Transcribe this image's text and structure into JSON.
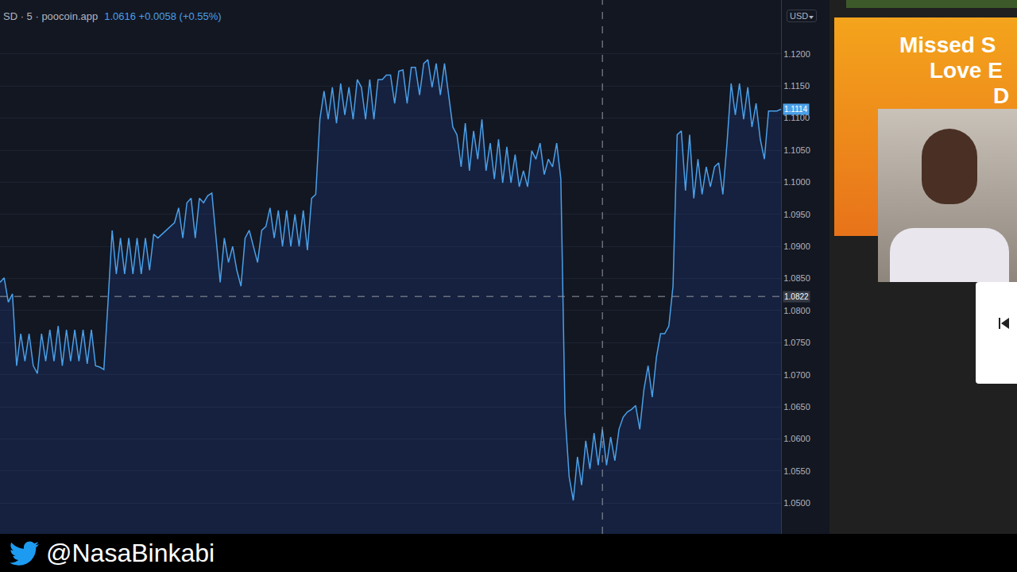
{
  "chart_data": {
    "type": "line",
    "color": "#4a9fe8",
    "grid": true,
    "tick_labels": "y",
    "currency": "USD",
    "last_price": 1.1114,
    "crosshair": {
      "x": 145,
      "y": 1.0822
    },
    "xlim": [
      0,
      188
    ],
    "ylim": [
      1.0452,
      1.1284
    ],
    "yticks": [
      {
        "value": 1.05,
        "label": "1.0500"
      },
      {
        "value": 1.055,
        "label": "1.0550"
      },
      {
        "value": 1.06,
        "label": "1.0600"
      },
      {
        "value": 1.065,
        "label": "1.0650"
      },
      {
        "value": 1.07,
        "label": "1.0700"
      },
      {
        "value": 1.075,
        "label": "1.0750"
      },
      {
        "value": 1.08,
        "label": "1.0800"
      },
      {
        "value": 1.085,
        "label": "1.0850"
      },
      {
        "value": 1.09,
        "label": "1.0900"
      },
      {
        "value": 1.095,
        "label": "1.0950"
      },
      {
        "value": 1.1,
        "label": "1.1000"
      },
      {
        "value": 1.105,
        "label": "1.1050"
      },
      {
        "value": 1.11,
        "label": "1.1100"
      },
      {
        "value": 1.115,
        "label": "1.1150"
      },
      {
        "value": 1.12,
        "label": "1.1200"
      }
    ],
    "x": [
      0,
      1,
      2,
      3,
      4,
      5,
      6,
      7,
      8,
      9,
      10,
      11,
      12,
      13,
      14,
      15,
      16,
      17,
      18,
      19,
      20,
      21,
      22,
      23,
      24,
      25,
      26,
      27,
      28,
      29,
      30,
      31,
      32,
      33,
      34,
      35,
      36,
      37,
      38,
      39,
      40,
      41,
      42,
      43,
      44,
      45,
      46,
      47,
      48,
      49,
      50,
      51,
      52,
      53,
      54,
      55,
      56,
      57,
      58,
      59,
      60,
      61,
      62,
      63,
      64,
      65,
      66,
      67,
      68,
      69,
      70,
      71,
      72,
      73,
      74,
      75,
      76,
      77,
      78,
      79,
      80,
      81,
      82,
      83,
      84,
      85,
      86,
      87,
      88,
      89,
      90,
      91,
      92,
      93,
      94,
      95,
      96,
      97,
      98,
      99,
      100,
      101,
      102,
      103,
      104,
      105,
      106,
      107,
      108,
      109,
      110,
      111,
      112,
      113,
      114,
      115,
      116,
      117,
      118,
      119,
      120,
      121,
      122,
      123,
      124,
      125,
      126,
      127,
      128,
      129,
      130,
      131,
      132,
      133,
      134,
      135,
      136,
      137,
      138,
      139,
      140,
      141,
      142,
      143,
      144,
      145,
      146,
      147,
      148,
      149,
      150,
      151,
      152,
      153,
      154,
      155,
      156,
      157,
      158,
      159,
      160,
      161,
      162,
      163,
      164,
      165,
      166,
      167,
      168,
      169,
      170,
      171,
      172,
      173,
      174,
      175,
      176,
      177,
      178,
      179,
      180,
      181,
      182,
      183,
      184,
      185,
      186,
      187,
      188
    ],
    "values": [
      1.0844,
      1.0851,
      1.0813,
      1.0826,
      1.0714,
      1.0764,
      1.0721,
      1.0764,
      1.0714,
      1.0702,
      1.0764,
      1.0721,
      1.077,
      1.0721,
      1.0776,
      1.0714,
      1.077,
      1.0721,
      1.077,
      1.0721,
      1.077,
      1.0717,
      1.077,
      1.0714,
      1.0712,
      1.0708,
      1.0813,
      1.0925,
      1.0857,
      1.0913,
      1.0857,
      1.0913,
      1.0857,
      1.0913,
      1.0857,
      1.0913,
      1.0863,
      1.0919,
      1.0913,
      1.0919,
      1.0925,
      1.0931,
      1.0937,
      1.096,
      1.0913,
      1.0968,
      1.0975,
      1.0913,
      1.0975,
      1.0968,
      1.0979,
      1.0983,
      1.0913,
      1.0844,
      1.0913,
      1.0875,
      1.09,
      1.0863,
      1.0838,
      1.0913,
      1.0925,
      1.09,
      1.0875,
      1.0925,
      1.0931,
      1.096,
      1.0913,
      1.0956,
      1.09,
      1.0956,
      1.09,
      1.095,
      1.09,
      1.0956,
      1.0894,
      1.0975,
      1.0981,
      1.1098,
      1.1142,
      1.1098,
      1.1148,
      1.1092,
      1.1154,
      1.1105,
      1.1148,
      1.1098,
      1.116,
      1.1148,
      1.1098,
      1.116,
      1.1098,
      1.116,
      1.116,
      1.1167,
      1.1167,
      1.1123,
      1.1173,
      1.1175,
      1.1123,
      1.1179,
      1.1179,
      1.1136,
      1.1185,
      1.1191,
      1.1148,
      1.1185,
      1.1136,
      1.1185,
      1.1136,
      1.1086,
      1.1074,
      1.1024,
      1.1092,
      1.1018,
      1.108,
      1.1036,
      1.1098,
      1.1018,
      1.1061,
      1.1005,
      1.1067,
      1.0999,
      1.1055,
      1.0999,
      1.1043,
      1.0993,
      1.1018,
      1.0993,
      1.1049,
      1.1036,
      1.1061,
      1.1012,
      1.1036,
      1.1024,
      1.1061,
      1.1005,
      1.064,
      1.0541,
      1.0504,
      1.0572,
      1.0528,
      1.0597,
      1.0553,
      1.0609,
      1.0559,
      1.0615,
      1.0559,
      1.0603,
      1.0566,
      1.0615,
      1.0634,
      1.0642,
      1.0646,
      1.0652,
      1.0615,
      1.0677,
      1.0714,
      1.0665,
      1.0727,
      1.0764,
      1.0764,
      1.0776,
      1.0838,
      1.1074,
      1.108,
      1.0987,
      1.1074,
      1.0975,
      1.1036,
      1.0981,
      1.1024,
      1.0993,
      1.1024,
      1.103,
      1.0981,
      1.1061,
      1.1154,
      1.1105,
      1.1154,
      1.1098,
      1.1148,
      1.1086,
      1.1123,
      1.1067,
      1.1036,
      1.1111,
      1.1111,
      1.1111,
      1.1114
    ]
  },
  "header": {
    "symbol": "SD · 5 · poocoin.app",
    "quote": "1.0616 +0.0058 (+0.55%)"
  },
  "ad": {
    "lines": [
      "Missed S",
      "Love E",
      "D"
    ]
  },
  "footer": {
    "handle": "@NasaBinkabi"
  }
}
